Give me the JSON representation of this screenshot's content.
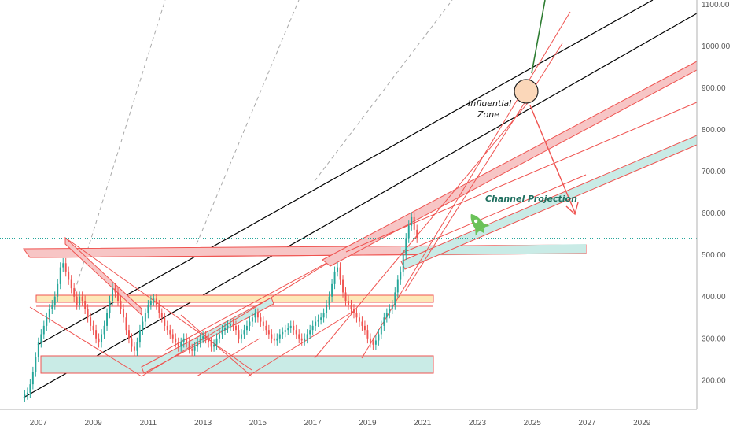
{
  "chart_data": {
    "type": "candlestick",
    "x_ticks": [
      "2007",
      "2009",
      "2011",
      "2013",
      "2015",
      "2017",
      "2019",
      "2021",
      "2023",
      "2025",
      "2027",
      "2029"
    ],
    "y_ticks": [
      "200.00",
      "300.00",
      "400.00",
      "500.00",
      "600.00",
      "700.00",
      "800.00",
      "900.00",
      "1000.00",
      "1100.00"
    ],
    "ylim": [
      130,
      1110
    ],
    "xlim": [
      2005.6,
      2031.0
    ],
    "last_price": 540,
    "colors": {
      "up": "#26a69a",
      "down": "#ef5350",
      "trend": "#ef5350",
      "channel": "#000000",
      "zone_fill": "#fbd7b9",
      "band_fill": "#c9ebe6"
    },
    "annotations": {
      "zone": [
        "Influential",
        "Zone"
      ],
      "projection": "Channel Projection"
    },
    "prices": [
      [
        2006.5,
        165
      ],
      [
        2006.6,
        170
      ],
      [
        2006.7,
        190
      ],
      [
        2006.8,
        220
      ],
      [
        2006.9,
        255
      ],
      [
        2007.0,
        290
      ],
      [
        2007.1,
        310
      ],
      [
        2007.2,
        330
      ],
      [
        2007.3,
        350
      ],
      [
        2007.4,
        370
      ],
      [
        2007.5,
        380
      ],
      [
        2007.6,
        400
      ],
      [
        2007.7,
        430
      ],
      [
        2007.8,
        470
      ],
      [
        2007.9,
        480
      ],
      [
        2008.0,
        460
      ],
      [
        2008.1,
        440
      ],
      [
        2008.2,
        420
      ],
      [
        2008.3,
        400
      ],
      [
        2008.4,
        380
      ],
      [
        2008.5,
        400
      ],
      [
        2008.6,
        390
      ],
      [
        2008.7,
        370
      ],
      [
        2008.8,
        350
      ],
      [
        2008.9,
        330
      ],
      [
        2009.0,
        320
      ],
      [
        2009.1,
        300
      ],
      [
        2009.2,
        290
      ],
      [
        2009.3,
        310
      ],
      [
        2009.4,
        330
      ],
      [
        2009.5,
        360
      ],
      [
        2009.6,
        390
      ],
      [
        2009.7,
        420
      ],
      [
        2009.8,
        410
      ],
      [
        2009.9,
        390
      ],
      [
        2010.0,
        370
      ],
      [
        2010.1,
        350
      ],
      [
        2010.2,
        320
      ],
      [
        2010.3,
        300
      ],
      [
        2010.4,
        280
      ],
      [
        2010.5,
        270
      ],
      [
        2010.6,
        290
      ],
      [
        2010.7,
        320
      ],
      [
        2010.8,
        340
      ],
      [
        2010.9,
        360
      ],
      [
        2011.0,
        380
      ],
      [
        2011.1,
        390
      ],
      [
        2011.2,
        395
      ],
      [
        2011.3,
        380
      ],
      [
        2011.4,
        360
      ],
      [
        2011.5,
        350
      ],
      [
        2011.6,
        330
      ],
      [
        2011.7,
        320
      ],
      [
        2011.8,
        310
      ],
      [
        2011.9,
        300
      ],
      [
        2012.0,
        290
      ],
      [
        2012.1,
        280
      ],
      [
        2012.2,
        290
      ],
      [
        2012.3,
        300
      ],
      [
        2012.4,
        290
      ],
      [
        2012.5,
        275
      ],
      [
        2012.6,
        270
      ],
      [
        2012.7,
        280
      ],
      [
        2012.8,
        290
      ],
      [
        2012.9,
        300
      ],
      [
        2013.0,
        305
      ],
      [
        2013.1,
        300
      ],
      [
        2013.2,
        290
      ],
      [
        2013.3,
        280
      ],
      [
        2013.4,
        285
      ],
      [
        2013.5,
        300
      ],
      [
        2013.6,
        310
      ],
      [
        2013.7,
        320
      ],
      [
        2013.8,
        325
      ],
      [
        2013.9,
        330
      ],
      [
        2014.0,
        335
      ],
      [
        2014.1,
        330
      ],
      [
        2014.2,
        320
      ],
      [
        2014.3,
        300
      ],
      [
        2014.4,
        310
      ],
      [
        2014.5,
        320
      ],
      [
        2014.6,
        330
      ],
      [
        2014.7,
        340
      ],
      [
        2014.8,
        350
      ],
      [
        2014.9,
        360
      ],
      [
        2015.0,
        350
      ],
      [
        2015.1,
        340
      ],
      [
        2015.2,
        330
      ],
      [
        2015.3,
        320
      ],
      [
        2015.4,
        310
      ],
      [
        2015.5,
        300
      ],
      [
        2015.6,
        295
      ],
      [
        2015.7,
        300
      ],
      [
        2015.8,
        310
      ],
      [
        2015.9,
        315
      ],
      [
        2016.0,
        320
      ],
      [
        2016.1,
        325
      ],
      [
        2016.2,
        330
      ],
      [
        2016.3,
        320
      ],
      [
        2016.4,
        310
      ],
      [
        2016.5,
        300
      ],
      [
        2016.6,
        295
      ],
      [
        2016.7,
        300
      ],
      [
        2016.8,
        310
      ],
      [
        2016.9,
        320
      ],
      [
        2017.0,
        330
      ],
      [
        2017.1,
        340
      ],
      [
        2017.2,
        345
      ],
      [
        2017.3,
        350
      ],
      [
        2017.4,
        360
      ],
      [
        2017.5,
        380
      ],
      [
        2017.6,
        400
      ],
      [
        2017.7,
        430
      ],
      [
        2017.8,
        460
      ],
      [
        2017.9,
        470
      ],
      [
        2018.0,
        440
      ],
      [
        2018.1,
        410
      ],
      [
        2018.2,
        390
      ],
      [
        2018.3,
        380
      ],
      [
        2018.4,
        370
      ],
      [
        2018.5,
        360
      ],
      [
        2018.6,
        350
      ],
      [
        2018.7,
        340
      ],
      [
        2018.8,
        330
      ],
      [
        2018.9,
        320
      ],
      [
        2019.0,
        300
      ],
      [
        2019.1,
        290
      ],
      [
        2019.2,
        285
      ],
      [
        2019.3,
        295
      ],
      [
        2019.4,
        310
      ],
      [
        2019.5,
        330
      ],
      [
        2019.6,
        350
      ],
      [
        2019.7,
        360
      ],
      [
        2019.8,
        370
      ],
      [
        2019.9,
        380
      ],
      [
        2020.0,
        410
      ],
      [
        2020.1,
        440
      ],
      [
        2020.2,
        460
      ],
      [
        2020.3,
        500
      ],
      [
        2020.4,
        540
      ],
      [
        2020.5,
        570
      ],
      [
        2020.6,
        590
      ],
      [
        2020.7,
        560
      ],
      [
        2020.8,
        540
      ]
    ]
  }
}
